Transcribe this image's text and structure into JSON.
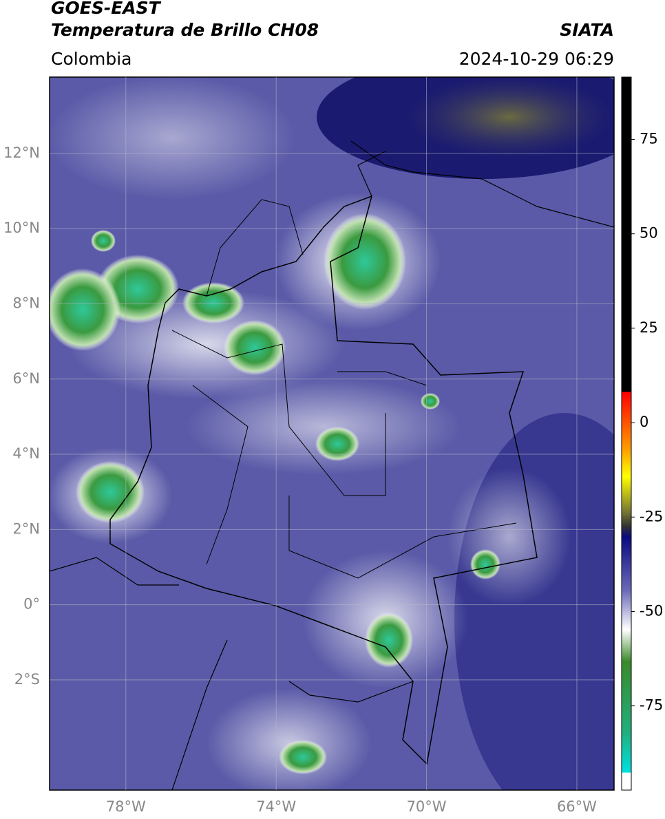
{
  "header": {
    "satellite": "GOES-EAST",
    "product": "Temperatura de Brillo CH08",
    "org": "SIATA",
    "region": "Colombia",
    "datetime": "2024-10-29 06:29"
  },
  "map": {
    "lat_lim": [
      -4.93,
      14.03
    ],
    "lon_lim": [
      -80.03,
      -65.01
    ],
    "lat_ticks": [
      {
        "value": 12,
        "label": "12°N"
      },
      {
        "value": 10,
        "label": "10°N"
      },
      {
        "value": 8,
        "label": "8°N"
      },
      {
        "value": 6,
        "label": "6°N"
      },
      {
        "value": 4,
        "label": "4°N"
      },
      {
        "value": 2,
        "label": "2°N"
      },
      {
        "value": 0,
        "label": "0°"
      },
      {
        "value": -2,
        "label": "2°S"
      }
    ],
    "lon_ticks": [
      {
        "value": -78,
        "label": "78°W"
      },
      {
        "value": -74,
        "label": "74°W"
      },
      {
        "value": -70,
        "label": "70°W"
      },
      {
        "value": -66,
        "label": "66°W"
      }
    ]
  },
  "colorbar": {
    "lim": [
      -97.3,
      91.5
    ],
    "ticks": [
      75,
      50,
      25,
      0,
      -25,
      -50,
      -75
    ]
  }
}
